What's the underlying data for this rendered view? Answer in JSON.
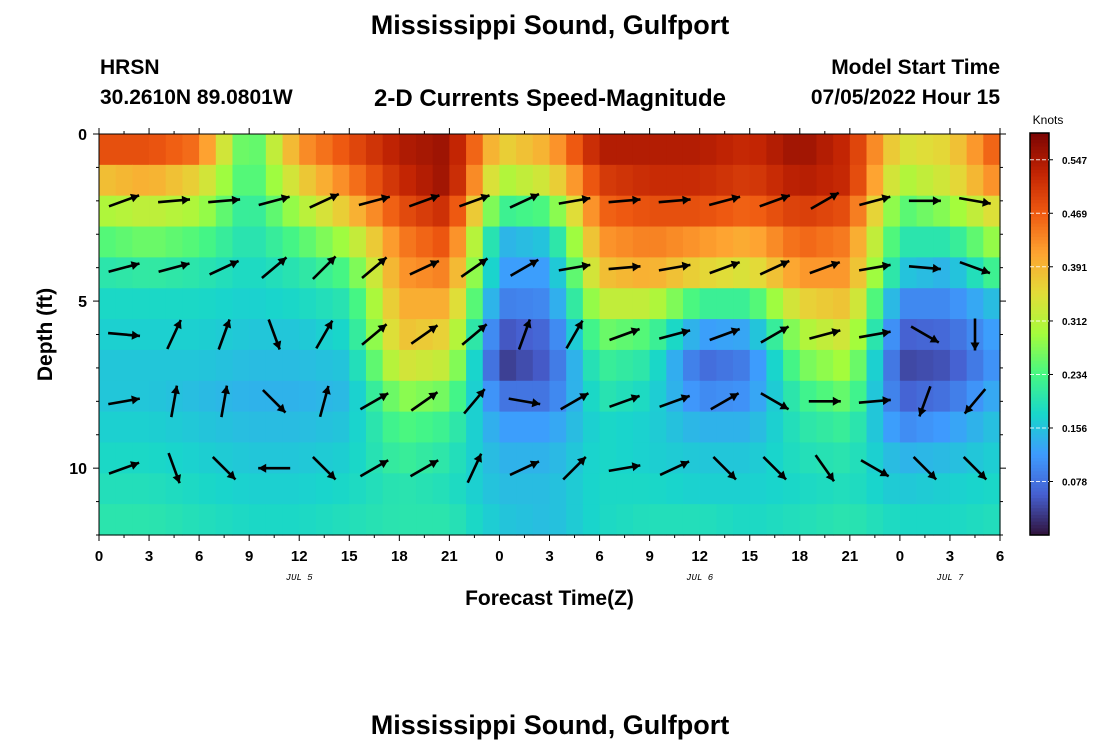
{
  "header": {
    "title": "Mississippi Sound, Gulfport",
    "station": "HRSN",
    "coords": "30.2610N  89.0801W",
    "subtitle": "2-D Currents Speed-Magnitude",
    "model_start_label": "Model Start Time",
    "model_start_value": "07/05/2022 Hour 15"
  },
  "footer": {
    "title": "Mississippi Sound, Gulfport"
  },
  "chart_data": {
    "type": "heatmap",
    "xlabel": "Forecast Time(Z)",
    "ylabel": "Depth (ft)",
    "x_ticks": [
      "0",
      "3",
      "6",
      "9",
      "12",
      "15",
      "18",
      "21",
      "0",
      "3",
      "6",
      "9",
      "12",
      "15",
      "18",
      "21",
      "0",
      "3",
      "6"
    ],
    "date_labels": [
      {
        "label": "JUL 5",
        "at_hour": 12
      },
      {
        "label": "JUL 6",
        "at_hour": 36
      },
      {
        "label": "JUL 7",
        "at_hour": 51
      }
    ],
    "x_range_hours": [
      0,
      54
    ],
    "y_ticks": [
      0,
      5,
      10
    ],
    "ylim": [
      0,
      12
    ],
    "colorbar": {
      "unit": "Knots",
      "ticks": [
        0.547,
        0.469,
        0.391,
        0.312,
        0.234,
        0.156,
        0.078
      ],
      "range": [
        0,
        0.586
      ]
    },
    "speed_grid": {
      "times_hours": [
        0,
        3,
        6,
        9,
        12,
        15,
        18,
        21,
        24,
        27,
        30,
        33,
        36,
        39,
        42,
        45,
        48,
        51,
        54
      ],
      "depths_ft": [
        0,
        1,
        2,
        3,
        4,
        5,
        6,
        7,
        8,
        9,
        10,
        11,
        12
      ],
      "rows": [
        [
          0.48,
          0.48,
          0.45,
          0.22,
          0.42,
          0.48,
          0.54,
          0.56,
          0.36,
          0.4,
          0.54,
          0.54,
          0.54,
          0.52,
          0.56,
          0.52,
          0.34,
          0.36,
          0.48
        ],
        [
          0.38,
          0.4,
          0.36,
          0.22,
          0.36,
          0.44,
          0.52,
          0.56,
          0.3,
          0.34,
          0.5,
          0.52,
          0.52,
          0.5,
          0.54,
          0.52,
          0.3,
          0.34,
          0.44
        ],
        [
          0.3,
          0.32,
          0.3,
          0.2,
          0.3,
          0.38,
          0.48,
          0.52,
          0.22,
          0.24,
          0.46,
          0.48,
          0.48,
          0.46,
          0.5,
          0.48,
          0.24,
          0.28,
          0.36
        ],
        [
          0.24,
          0.26,
          0.24,
          0.19,
          0.24,
          0.3,
          0.44,
          0.48,
          0.14,
          0.16,
          0.42,
          0.44,
          0.42,
          0.4,
          0.46,
          0.44,
          0.2,
          0.2,
          0.3
        ],
        [
          0.2,
          0.21,
          0.2,
          0.18,
          0.2,
          0.24,
          0.42,
          0.44,
          0.12,
          0.12,
          0.38,
          0.4,
          0.36,
          0.34,
          0.42,
          0.42,
          0.16,
          0.14,
          0.24
        ],
        [
          0.18,
          0.18,
          0.18,
          0.17,
          0.18,
          0.2,
          0.4,
          0.4,
          0.09,
          0.1,
          0.32,
          0.32,
          0.22,
          0.22,
          0.36,
          0.38,
          0.1,
          0.1,
          0.16
        ],
        [
          0.17,
          0.17,
          0.17,
          0.16,
          0.16,
          0.18,
          0.38,
          0.36,
          0.05,
          0.07,
          0.26,
          0.24,
          0.12,
          0.13,
          0.3,
          0.34,
          0.06,
          0.07,
          0.13
        ],
        [
          0.16,
          0.16,
          0.16,
          0.15,
          0.15,
          0.16,
          0.34,
          0.32,
          0.03,
          0.06,
          0.22,
          0.2,
          0.07,
          0.09,
          0.26,
          0.3,
          0.04,
          0.05,
          0.12
        ],
        [
          0.16,
          0.16,
          0.15,
          0.14,
          0.14,
          0.15,
          0.28,
          0.26,
          0.08,
          0.08,
          0.2,
          0.18,
          0.1,
          0.11,
          0.22,
          0.26,
          0.06,
          0.08,
          0.14
        ],
        [
          0.17,
          0.17,
          0.16,
          0.15,
          0.15,
          0.16,
          0.24,
          0.22,
          0.12,
          0.12,
          0.18,
          0.17,
          0.14,
          0.14,
          0.2,
          0.22,
          0.1,
          0.12,
          0.16
        ],
        [
          0.18,
          0.18,
          0.17,
          0.16,
          0.16,
          0.17,
          0.22,
          0.2,
          0.14,
          0.14,
          0.18,
          0.17,
          0.16,
          0.16,
          0.19,
          0.2,
          0.14,
          0.15,
          0.17
        ],
        [
          0.19,
          0.19,
          0.18,
          0.17,
          0.17,
          0.18,
          0.2,
          0.19,
          0.15,
          0.15,
          0.18,
          0.18,
          0.17,
          0.17,
          0.18,
          0.19,
          0.16,
          0.17,
          0.18
        ],
        [
          0.2,
          0.2,
          0.19,
          0.18,
          0.18,
          0.19,
          0.2,
          0.2,
          0.16,
          0.15,
          0.18,
          0.19,
          0.19,
          0.18,
          0.19,
          0.2,
          0.18,
          0.18,
          0.19
        ]
      ]
    },
    "vector_depths_ft": [
      2,
      4,
      6,
      8,
      10
    ],
    "vector_times_hours": [
      1.5,
      4.5,
      7.5,
      10.5,
      13.5,
      16.5,
      19.5,
      22.5,
      25.5,
      28.5,
      31.5,
      34.5,
      37.5,
      40.5,
      43.5,
      46.5,
      49.5,
      52.5
    ],
    "vector_angles_deg": [
      [
        20,
        5,
        5,
        15,
        25,
        15,
        20,
        20,
        25,
        10,
        5,
        5,
        15,
        20,
        30,
        15,
        0,
        -10
      ],
      [
        15,
        15,
        25,
        40,
        45,
        40,
        25,
        35,
        30,
        10,
        5,
        10,
        20,
        25,
        20,
        10,
        -5,
        -20
      ],
      [
        -5,
        65,
        70,
        -70,
        60,
        40,
        35,
        40,
        70,
        60,
        20,
        15,
        20,
        30,
        15,
        10,
        -30,
        -90
      ],
      [
        10,
        80,
        80,
        -45,
        75,
        30,
        35,
        50,
        -10,
        30,
        20,
        20,
        30,
        -30,
        0,
        5,
        -110,
        -130
      ],
      [
        20,
        -70,
        -45,
        180,
        -45,
        30,
        30,
        65,
        25,
        45,
        10,
        25,
        -45,
        -45,
        -55,
        -30,
        -45,
        -45
      ]
    ]
  }
}
